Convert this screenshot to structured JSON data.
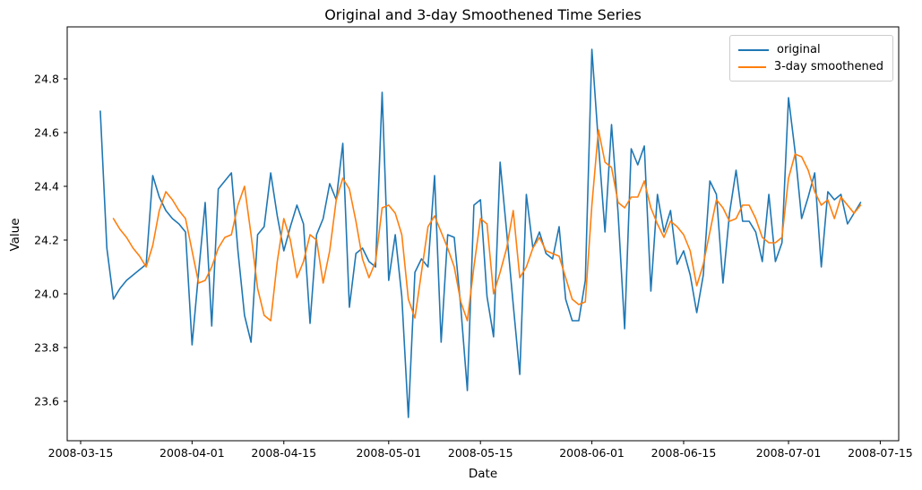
{
  "figure": {
    "title": "Original and 3-day Smoothened Time Series",
    "xlabel": "Date",
    "ylabel": "Value"
  },
  "chart_data": {
    "type": "line",
    "title": "Original and 3-day Smoothened Time Series",
    "xlabel": "Date",
    "ylabel": "Value",
    "grid": false,
    "legend_position": "upper right",
    "xlim": [
      "2008-03-13",
      "2008-07-18"
    ],
    "ylim": [
      23.45,
      24.99
    ],
    "x_tick_labels": [
      "2008-03-15",
      "2008-04-01",
      "2008-04-15",
      "2008-05-01",
      "2008-05-15",
      "2008-06-01",
      "2008-06-15",
      "2008-07-01",
      "2008-07-15"
    ],
    "y_tick_labels": [
      "23.6",
      "23.8",
      "24.0",
      "24.2",
      "24.4",
      "24.6",
      "24.8"
    ],
    "dates": [
      "2008-03-18",
      "2008-03-19",
      "2008-03-20",
      "2008-03-21",
      "2008-03-22",
      "2008-03-23",
      "2008-03-24",
      "2008-03-25",
      "2008-03-26",
      "2008-03-27",
      "2008-03-28",
      "2008-03-29",
      "2008-03-30",
      "2008-03-31",
      "2008-04-01",
      "2008-04-02",
      "2008-04-03",
      "2008-04-04",
      "2008-04-05",
      "2008-04-06",
      "2008-04-07",
      "2008-04-08",
      "2008-04-09",
      "2008-04-10",
      "2008-04-11",
      "2008-04-12",
      "2008-04-13",
      "2008-04-14",
      "2008-04-15",
      "2008-04-16",
      "2008-04-17",
      "2008-04-18",
      "2008-04-19",
      "2008-04-20",
      "2008-04-21",
      "2008-04-22",
      "2008-04-23",
      "2008-04-24",
      "2008-04-25",
      "2008-04-26",
      "2008-04-27",
      "2008-04-28",
      "2008-04-29",
      "2008-04-30",
      "2008-05-01",
      "2008-05-02",
      "2008-05-03",
      "2008-05-04",
      "2008-05-05",
      "2008-05-06",
      "2008-05-07",
      "2008-05-08",
      "2008-05-09",
      "2008-05-10",
      "2008-05-11",
      "2008-05-12",
      "2008-05-13",
      "2008-05-14",
      "2008-05-15",
      "2008-05-16",
      "2008-05-17",
      "2008-05-18",
      "2008-05-19",
      "2008-05-20",
      "2008-05-21",
      "2008-05-22",
      "2008-05-23",
      "2008-05-24",
      "2008-05-25",
      "2008-05-26",
      "2008-05-27",
      "2008-05-28",
      "2008-05-29",
      "2008-05-30",
      "2008-05-31",
      "2008-06-01",
      "2008-06-02",
      "2008-06-03",
      "2008-06-04",
      "2008-06-05",
      "2008-06-06",
      "2008-06-07",
      "2008-06-08",
      "2008-06-09",
      "2008-06-10",
      "2008-06-11",
      "2008-06-12",
      "2008-06-13",
      "2008-06-14",
      "2008-06-15",
      "2008-06-16",
      "2008-06-17",
      "2008-06-18",
      "2008-06-19",
      "2008-06-20",
      "2008-06-21",
      "2008-06-22",
      "2008-06-23",
      "2008-06-24",
      "2008-06-25",
      "2008-06-26",
      "2008-06-27",
      "2008-06-28",
      "2008-06-29",
      "2008-06-30",
      "2008-07-01",
      "2008-07-02",
      "2008-07-03",
      "2008-07-04",
      "2008-07-05",
      "2008-07-06",
      "2008-07-07",
      "2008-07-08",
      "2008-07-09",
      "2008-07-10",
      "2008-07-11",
      "2008-07-12"
    ],
    "series": [
      {
        "name": "original",
        "color": "#1f77b4",
        "values": [
          24.68,
          24.17,
          23.98,
          24.02,
          24.05,
          24.07,
          24.09,
          24.11,
          24.44,
          24.36,
          24.31,
          24.28,
          24.26,
          24.23,
          23.81,
          24.08,
          24.34,
          23.88,
          24.39,
          24.42,
          24.45,
          24.16,
          23.92,
          23.82,
          24.22,
          24.25,
          24.45,
          24.29,
          24.16,
          24.25,
          24.33,
          24.26,
          23.89,
          24.22,
          24.28,
          24.41,
          24.35,
          24.56,
          23.95,
          24.15,
          24.17,
          24.12,
          24.1,
          24.75,
          24.05,
          24.22,
          23.99,
          23.54,
          24.08,
          24.13,
          24.1,
          24.44,
          23.82,
          24.22,
          24.21,
          23.95,
          23.64,
          24.33,
          24.35,
          23.99,
          23.84,
          24.49,
          24.23,
          23.96,
          23.7,
          24.37,
          24.17,
          24.23,
          24.15,
          24.13,
          24.25,
          23.98,
          23.9,
          23.9,
          24.05,
          24.91,
          24.56,
          24.23,
          24.63,
          24.3,
          23.87,
          24.54,
          24.48,
          24.55,
          24.01,
          24.37,
          24.23,
          24.31,
          24.11,
          24.16,
          24.07,
          23.93,
          24.07,
          24.42,
          24.37,
          24.04,
          24.3,
          24.46,
          24.27,
          24.27,
          24.23,
          24.12,
          24.37,
          24.12,
          24.19,
          24.73,
          24.53,
          24.28,
          24.36,
          24.45,
          24.1,
          24.38,
          24.35,
          24.37,
          24.26,
          24.3,
          24.34
        ]
      },
      {
        "name": "3-day smoothened",
        "color": "#ff7f0e",
        "values": [
          null,
          null,
          24.28,
          24.24,
          24.21,
          24.17,
          24.14,
          24.1,
          24.18,
          24.31,
          24.38,
          24.35,
          24.31,
          24.28,
          24.16,
          24.04,
          24.05,
          24.1,
          24.17,
          24.21,
          24.22,
          24.33,
          24.4,
          24.22,
          24.02,
          23.92,
          23.9,
          24.12,
          24.28,
          24.2,
          24.06,
          24.12,
          24.22,
          24.2,
          24.04,
          24.16,
          24.35,
          24.43,
          24.39,
          24.27,
          24.13,
          24.06,
          24.12,
          24.32,
          24.33,
          24.3,
          24.22,
          23.98,
          23.91,
          24.08,
          24.25,
          24.29,
          24.23,
          24.17,
          24.1,
          23.97,
          23.9,
          24.1,
          24.28,
          24.26,
          24.0,
          24.08,
          24.17,
          24.31,
          24.06,
          24.1,
          24.17,
          24.21,
          24.16,
          24.15,
          24.14,
          24.06,
          23.98,
          23.96,
          23.97,
          24.33,
          24.61,
          24.49,
          24.47,
          24.34,
          24.32,
          24.36,
          24.36,
          24.42,
          24.32,
          24.26,
          24.21,
          24.27,
          24.25,
          24.22,
          24.16,
          24.03,
          24.11,
          24.23,
          24.35,
          24.32,
          24.27,
          24.28,
          24.33,
          24.33,
          24.28,
          24.21,
          24.19,
          24.19,
          24.21,
          24.43,
          24.52,
          24.51,
          24.46,
          24.38,
          24.33,
          24.35,
          24.28,
          24.36,
          24.33,
          24.3,
          24.33
        ]
      }
    ]
  }
}
